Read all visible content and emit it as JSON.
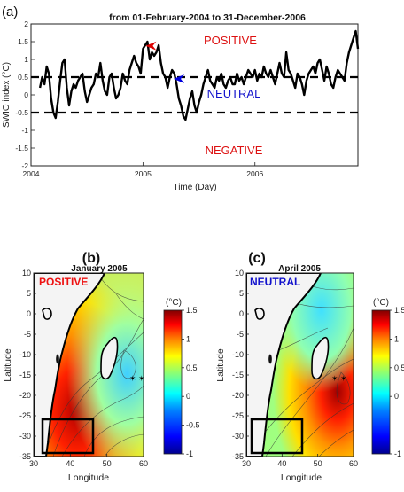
{
  "chart_data": [
    {
      "panel_label": "(a)",
      "type": "line",
      "title": "from 01-February-2004 to 31-December-2006",
      "xlabel": "Time (Day)",
      "ylabel": "SWIO index (°C)",
      "xlim": [
        2004.0,
        2006.92
      ],
      "ylim": [
        -2,
        2
      ],
      "x_ticks": [
        2004,
        2005,
        2006
      ],
      "y_ticks": [
        -2,
        -1.5,
        -1,
        -0.5,
        0,
        0.5,
        1,
        1.5,
        2
      ],
      "thresholds": [
        0.5,
        -0.5
      ],
      "annotations": [
        "POSITIVE",
        "NEUTRAL",
        "NEGATIVE"
      ],
      "arrows": [
        {
          "x": 2005.04,
          "y": 1.38,
          "color": "#dd0000"
        },
        {
          "x": 2005.29,
          "y": 0.45,
          "color": "#0000dd"
        }
      ],
      "series": [
        {
          "x": [
            2004.08,
            2004.1,
            2004.12,
            2004.14,
            2004.16,
            2004.18,
            2004.2,
            2004.22,
            2004.24,
            2004.26,
            2004.28,
            2004.3,
            2004.32,
            2004.34,
            2004.36,
            2004.38,
            2004.4,
            2004.42,
            2004.44,
            2004.46,
            2004.48,
            2004.5,
            2004.52,
            2004.54,
            2004.56,
            2004.58,
            2004.6,
            2004.62,
            2004.64,
            2004.66,
            2004.68,
            2004.7,
            2004.72,
            2004.74,
            2004.76,
            2004.78,
            2004.8,
            2004.82,
            2004.84,
            2004.86,
            2004.88,
            2004.9,
            2004.92,
            2004.94,
            2004.96,
            2004.98,
            2005.0,
            2005.02,
            2005.04,
            2005.06,
            2005.08,
            2005.1,
            2005.12,
            2005.14,
            2005.16,
            2005.18,
            2005.2,
            2005.22,
            2005.24,
            2005.26,
            2005.28,
            2005.3,
            2005.32,
            2005.34,
            2005.36,
            2005.38,
            2005.4,
            2005.42,
            2005.44,
            2005.46,
            2005.48,
            2005.5,
            2005.52,
            2005.54,
            2005.56,
            2005.58,
            2005.6,
            2005.62,
            2005.64,
            2005.66,
            2005.68,
            2005.7,
            2005.72,
            2005.74,
            2005.76,
            2005.78,
            2005.8,
            2005.82,
            2005.84,
            2005.86,
            2005.88,
            2005.9,
            2005.92,
            2005.94,
            2005.96,
            2005.98,
            2006.0,
            2006.02,
            2006.04,
            2006.06,
            2006.08,
            2006.1,
            2006.12,
            2006.14,
            2006.16,
            2006.18,
            2006.2,
            2006.22,
            2006.24,
            2006.26,
            2006.28,
            2006.3,
            2006.32,
            2006.34,
            2006.36,
            2006.38,
            2006.4,
            2006.42,
            2006.44,
            2006.46,
            2006.48,
            2006.5,
            2006.52,
            2006.54,
            2006.56,
            2006.58,
            2006.6,
            2006.62,
            2006.64,
            2006.66,
            2006.68,
            2006.7,
            2006.72,
            2006.74,
            2006.76,
            2006.78,
            2006.8,
            2006.82,
            2006.84,
            2006.86,
            2006.88,
            2006.9,
            2006.92
          ],
          "values": [
            0.2,
            0.5,
            0.3,
            0.8,
            0.6,
            -0.1,
            -0.5,
            -0.65,
            -0.2,
            0.4,
            0.9,
            1.0,
            0.2,
            -0.3,
            0.1,
            0.3,
            0.2,
            0.4,
            0.5,
            0.6,
            0.1,
            -0.2,
            0.0,
            0.2,
            0.3,
            0.6,
            0.5,
            0.9,
            0.4,
            0.1,
            0.0,
            0.5,
            0.6,
            0.2,
            -0.1,
            0.0,
            0.2,
            0.6,
            0.4,
            0.3,
            0.7,
            0.9,
            1.1,
            0.9,
            0.8,
            0.6,
            1.3,
            1.4,
            1.5,
            1.0,
            1.2,
            1.1,
            1.2,
            1.4,
            0.9,
            0.6,
            0.5,
            0.2,
            0.5,
            0.7,
            0.6,
            0.3,
            -0.1,
            -0.3,
            -0.6,
            -0.7,
            -0.4,
            -0.1,
            0.1,
            -0.3,
            -0.5,
            -0.2,
            0.0,
            0.3,
            0.5,
            0.7,
            0.4,
            0.3,
            0.2,
            0.5,
            0.4,
            0.6,
            0.3,
            0.2,
            0.4,
            0.5,
            0.3,
            0.3,
            0.6,
            0.4,
            0.5,
            0.3,
            0.5,
            0.7,
            0.6,
            0.5,
            0.7,
            0.4,
            0.6,
            0.5,
            0.8,
            0.6,
            0.5,
            0.7,
            0.5,
            0.3,
            0.6,
            0.9,
            0.6,
            0.5,
            1.2,
            0.7,
            0.6,
            0.4,
            0.2,
            0.6,
            0.5,
            0.3,
            0.0,
            0.4,
            0.6,
            0.7,
            0.8,
            0.6,
            0.9,
            1.0,
            0.7,
            0.4,
            0.8,
            0.6,
            0.3,
            0.2,
            0.5,
            0.7,
            0.6,
            0.5,
            0.4,
            0.9,
            1.2,
            1.4,
            1.6,
            1.8,
            1.3
          ]
        }
      ]
    },
    {
      "panel_label": "(b)",
      "type": "heatmap",
      "title": "January 2005",
      "annotation": "POSITIVE",
      "xlabel": "Longitude",
      "ylabel": "Latitude",
      "xlim": [
        30,
        60
      ],
      "ylim": [
        -35,
        10
      ],
      "x_ticks": [
        30,
        40,
        50,
        60
      ],
      "y_ticks": [
        10,
        5,
        0,
        -5,
        -10,
        -15,
        -20,
        -25,
        -30,
        -35
      ],
      "box": {
        "lon": [
          31,
          45
        ],
        "lat": [
          -33,
          -25
        ]
      },
      "colorbar": {
        "label": "(°C)",
        "ticks": [
          1.5,
          1,
          0.5,
          0,
          -0.5,
          -1
        ],
        "range": [
          -1,
          1.5
        ]
      },
      "colormap": [
        "#00008f",
        "#0000ff",
        "#0080ff",
        "#00ffff",
        "#80ff80",
        "#ffff00",
        "#ff8000",
        "#ff0000",
        "#800000"
      ]
    },
    {
      "panel_label": "(c)",
      "type": "heatmap",
      "title": "April 2005",
      "annotation": "NEUTRAL",
      "xlabel": "Longitude",
      "ylabel": "Latitude",
      "xlim": [
        30,
        60
      ],
      "ylim": [
        -35,
        10
      ],
      "x_ticks": [
        30,
        40,
        50,
        60
      ],
      "y_ticks": [
        10,
        5,
        0,
        -5,
        -10,
        -15,
        -20,
        -25,
        -30,
        -35
      ],
      "box": {
        "lon": [
          31,
          45
        ],
        "lat": [
          -33,
          -25
        ]
      },
      "colorbar": {
        "label": "(°C)",
        "ticks": [
          1.5,
          1,
          0.5,
          0,
          -1
        ],
        "range": [
          -1,
          1.5
        ]
      },
      "colormap": [
        "#00008f",
        "#0000ff",
        "#0080ff",
        "#00ffff",
        "#80ff80",
        "#ffff00",
        "#ff8000",
        "#ff0000",
        "#800000"
      ]
    }
  ]
}
